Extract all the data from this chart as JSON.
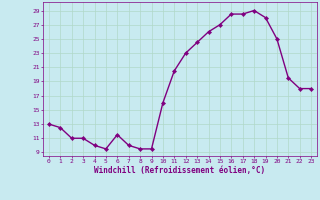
{
  "x": [
    0,
    1,
    2,
    3,
    4,
    5,
    6,
    7,
    8,
    9,
    10,
    11,
    12,
    13,
    14,
    15,
    16,
    17,
    18,
    19,
    20,
    21,
    22,
    23
  ],
  "y": [
    13,
    12.5,
    11,
    11,
    10,
    9.5,
    11.5,
    10,
    9.5,
    9.5,
    16,
    20.5,
    23,
    24.5,
    26,
    27,
    28.5,
    28.5,
    29,
    28,
    25,
    19.5,
    18,
    18
  ],
  "line_color": "#800080",
  "marker": "D",
  "marker_size": 2.2,
  "bg_color": "#c8eaf0",
  "grid_color": "#b0d8c8",
  "xlabel": "Windchill (Refroidissement éolien,°C)",
  "xlabel_color": "#800080",
  "yticks": [
    9,
    11,
    13,
    15,
    17,
    19,
    21,
    23,
    25,
    27,
    29
  ],
  "xticks": [
    0,
    1,
    2,
    3,
    4,
    5,
    6,
    7,
    8,
    9,
    10,
    11,
    12,
    13,
    14,
    15,
    16,
    17,
    18,
    19,
    20,
    21,
    22,
    23
  ],
  "ylim": [
    8.5,
    30.2
  ],
  "xlim": [
    -0.5,
    23.5
  ],
  "tick_color": "#800080",
  "line_width": 1.0
}
